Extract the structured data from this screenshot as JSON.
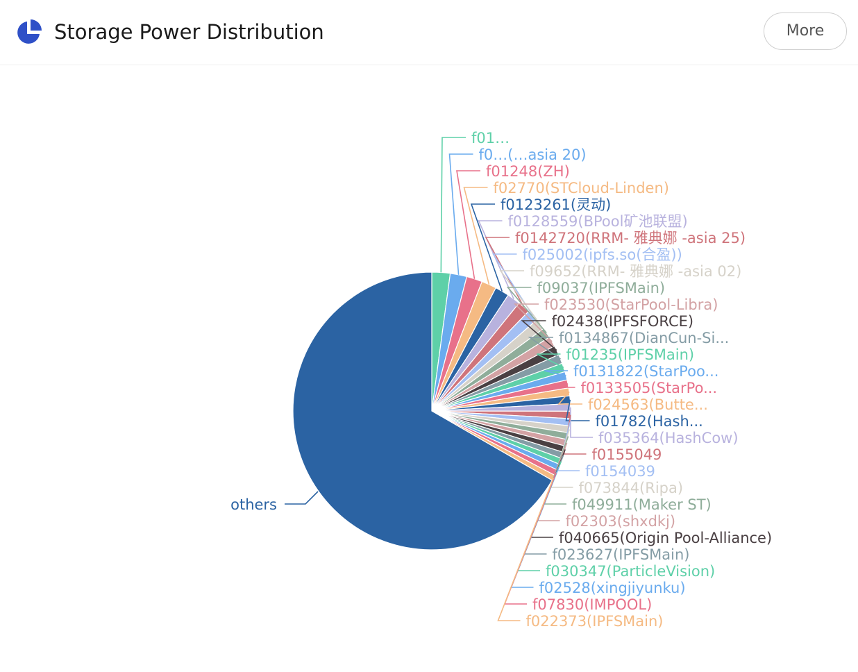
{
  "header": {
    "title": "Storage Power Distribution",
    "more_label": "More",
    "icon": "pie-chart-icon"
  },
  "chart_data": {
    "type": "pie",
    "palette": [
      "#5ed0a8",
      "#6aabee",
      "#e8718a",
      "#f5ba83",
      "#2b63a3",
      "#b8b2de",
      "#cf747b",
      "#a3bff3",
      "#d6d2c9",
      "#8fad9a",
      "#d3a2a4",
      "#4a4043",
      "#849ca5"
    ],
    "slices": [
      {
        "label": "f01…",
        "value": 2.2
      },
      {
        "label": "f0…(…asia 20)",
        "value": 2.0
      },
      {
        "label": "f01248(ZH)",
        "value": 1.9
      },
      {
        "label": "f02770(STCloud-Linden)",
        "value": 1.8
      },
      {
        "label": "f0123261(灵动)",
        "value": 1.7
      },
      {
        "label": "f0128559(BPool矿池联盟)",
        "value": 1.6
      },
      {
        "label": "f0142720(RRM- 雅典娜 -asia 25)",
        "value": 1.5
      },
      {
        "label": "f025002(ipfs.so(合盈))",
        "value": 1.4
      },
      {
        "label": "f09652(RRM- 雅典娜 -asia 02)",
        "value": 1.3
      },
      {
        "label": "f09037(IPFSMain)",
        "value": 1.25
      },
      {
        "label": "f023530(StarPool-Libra)",
        "value": 1.2
      },
      {
        "label": "f02438(IPFSFORCE)",
        "value": 1.15
      },
      {
        "label": "f0134867(DianCun-Si...",
        "value": 1.1
      },
      {
        "label": "f01235(IPFSMain)",
        "value": 1.05
      },
      {
        "label": "f0131822(StarPoo...",
        "value": 1.0
      },
      {
        "label": "f0133505(StarPo...",
        "value": 0.97
      },
      {
        "label": "f024563(Butte...",
        "value": 0.95
      },
      {
        "label": "f01782(Hash...",
        "value": 0.93
      },
      {
        "label": "f035364(HashCow)",
        "value": 0.9
      },
      {
        "label": "f0155049",
        "value": 0.88
      },
      {
        "label": "f0154039",
        "value": 0.86
      },
      {
        "label": "f073844(Ripa)",
        "value": 0.84
      },
      {
        "label": "f049911(Maker ST)",
        "value": 0.82
      },
      {
        "label": "f02303(shxdkj)",
        "value": 0.8
      },
      {
        "label": "f040665(Origin Pool-Alliance)",
        "value": 0.78
      },
      {
        "label": "f023627(IPFSMain)",
        "value": 0.76
      },
      {
        "label": "f030347(ParticleVision)",
        "value": 0.74
      },
      {
        "label": "f02528(xingjiyunku)",
        "value": 0.72
      },
      {
        "label": "f07830(IMPOOL)",
        "value": 0.7
      },
      {
        "label": "f022373(IPFSMain)",
        "value": 0.68
      },
      {
        "label": "others",
        "value": 69.0
      }
    ]
  }
}
